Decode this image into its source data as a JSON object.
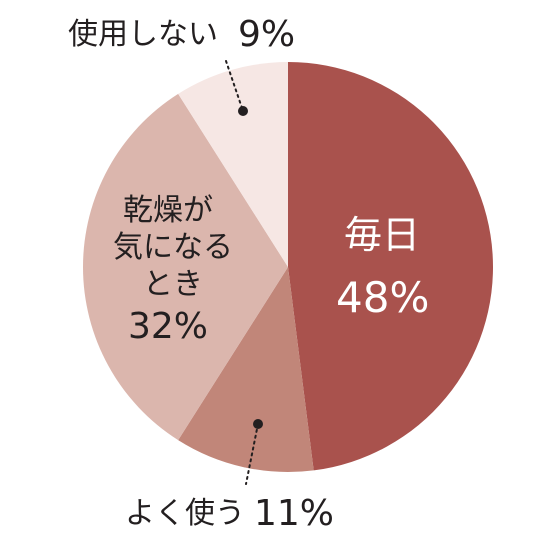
{
  "chart_data": {
    "type": "pie",
    "slices": [
      {
        "label": "毎日",
        "value": 48,
        "value_text": "48%",
        "color": "#a9524d"
      },
      {
        "label": "よく使う",
        "value": 11,
        "value_text": "11%",
        "color": "#c18679"
      },
      {
        "label": "乾燥が気になるとき",
        "value": 32,
        "value_text": "32%",
        "color": "#dbb6ad"
      },
      {
        "label": "使用しない",
        "value": 9,
        "value_text": "9%",
        "color": "#f6e7e4"
      }
    ],
    "label_lines": {
      "dry": [
        "乾燥が",
        "気になる",
        "とき"
      ]
    }
  }
}
